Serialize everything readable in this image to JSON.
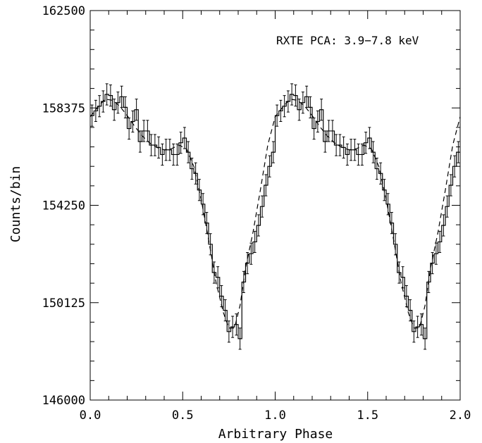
{
  "chart_data": {
    "type": "line",
    "annotation": "RXTE PCA: 3.9−7.8 keV",
    "xlabel": "Arbitrary Phase",
    "ylabel": "Counts/bin",
    "xlim": [
      0.0,
      2.0
    ],
    "ylim": [
      146000,
      162500
    ],
    "x_ticks": [
      "0.0",
      "0.5",
      "1.0",
      "1.5",
      "2.0"
    ],
    "y_ticks": [
      "146000",
      "150125",
      "154250",
      "158375",
      "162500"
    ],
    "bin_width": 0.02,
    "series": [
      {
        "style": "histogram-with-errorbars",
        "color": "#000000",
        "x": [
          0.0,
          0.02,
          0.04,
          0.06,
          0.08,
          0.1,
          0.12,
          0.14,
          0.16,
          0.18,
          0.2,
          0.22,
          0.24,
          0.26,
          0.28,
          0.3,
          0.32,
          0.34,
          0.36,
          0.38,
          0.4,
          0.42,
          0.44,
          0.46,
          0.48,
          0.5,
          0.52,
          0.54,
          0.56,
          0.58,
          0.6,
          0.62,
          0.64,
          0.66,
          0.68,
          0.7,
          0.72,
          0.74,
          0.76,
          0.78,
          0.8,
          0.82,
          0.84,
          0.86,
          0.88,
          0.9,
          0.92,
          0.94,
          0.96,
          0.98
        ],
        "y": [
          158050,
          158250,
          158450,
          158650,
          158950,
          158900,
          158300,
          158600,
          158850,
          158400,
          157500,
          157800,
          158300,
          156950,
          157400,
          157400,
          156800,
          156800,
          156700,
          156400,
          156600,
          156600,
          156400,
          156400,
          156900,
          157100,
          156500,
          155800,
          155600,
          154900,
          154300,
          153500,
          152600,
          151400,
          151200,
          150400,
          149800,
          148900,
          149100,
          149200,
          148600,
          151000,
          151800,
          152200,
          152700,
          153400,
          154200,
          155100,
          155900,
          156500
        ],
        "err": 450
      },
      {
        "style": "dashed-model",
        "color": "#000000",
        "x": [
          0.0,
          0.04,
          0.08,
          0.12,
          0.16,
          0.2,
          0.24,
          0.28,
          0.32,
          0.36,
          0.4,
          0.44,
          0.48,
          0.52,
          0.56,
          0.6,
          0.64,
          0.68,
          0.72,
          0.75,
          0.78,
          0.81,
          0.84,
          0.88,
          0.92,
          0.96,
          1.0
        ],
        "y": [
          158000,
          158400,
          158750,
          158700,
          158450,
          158050,
          157600,
          157200,
          156900,
          156700,
          156600,
          156650,
          156800,
          156650,
          155900,
          154500,
          152800,
          151000,
          149700,
          149050,
          149050,
          150000,
          151600,
          153100,
          154900,
          156800,
          158000
        ]
      }
    ]
  }
}
